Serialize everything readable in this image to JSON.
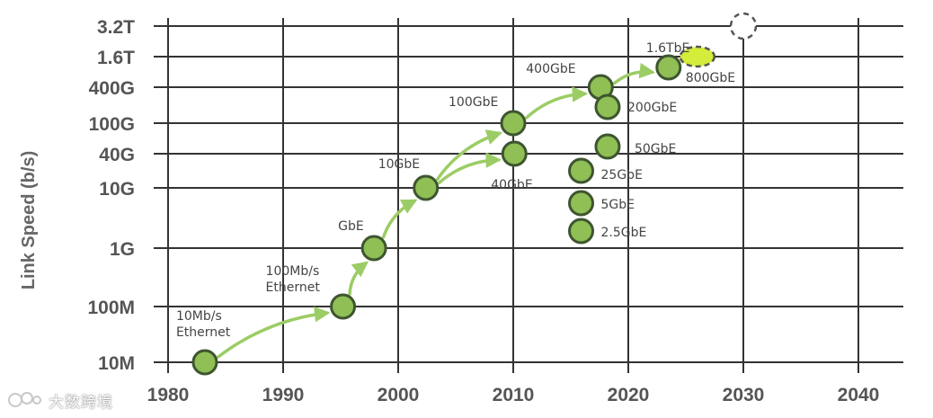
{
  "chart_data": {
    "type": "scatter",
    "title": "",
    "xlabel": "",
    "ylabel": "Link Speed (b/s)",
    "xlim": [
      1980,
      2040
    ],
    "x_ticks": [
      1980,
      1990,
      2000,
      2010,
      2020,
      2030,
      2040
    ],
    "y_ticks": [
      "10M",
      "100M",
      "1G",
      "10G",
      "40G",
      "100G",
      "400G",
      "1.6T",
      "3.2T"
    ],
    "grid": true,
    "colors": {
      "point": "#8fbf55",
      "point_border": "#3e5530",
      "arrow": "#9ccc65",
      "future_fill": "#d4ec3a",
      "grid": "#333333"
    },
    "points": [
      {
        "label": "10Mb/s\nEthernet",
        "year": 1983.2,
        "speed": "10M"
      },
      {
        "label": "100Mb/s\nEthernet",
        "year": 1995.2,
        "speed": "100M"
      },
      {
        "label": "GbE",
        "year": 1997.9,
        "speed": "1G"
      },
      {
        "label": "10GbE",
        "year": 2002.4,
        "speed": "10G"
      },
      {
        "label": "40GbE",
        "year": 2010.1,
        "speed": "40G"
      },
      {
        "label": "100GbE",
        "year": 2010.0,
        "speed": "100G"
      },
      {
        "label": "400GbE",
        "year": 2017.6,
        "speed": "400G"
      },
      {
        "label": "200GbE",
        "year": 2018.2,
        "speed": "200G"
      },
      {
        "label": "50GbE",
        "year": 2018.2,
        "speed": "50G"
      },
      {
        "label": "25GbE",
        "year": 2015.9,
        "speed": "25G"
      },
      {
        "label": "5GbE",
        "year": 2015.9,
        "speed": "5G"
      },
      {
        "label": "2.5GbE",
        "year": 2015.9,
        "speed": "2.5G"
      },
      {
        "label": "800GbE",
        "year": 2023.5,
        "speed": "800G"
      },
      {
        "label": "1.6TbE",
        "year": 2026.0,
        "speed": "1.6T"
      },
      {
        "label": "",
        "year": 2030.0,
        "speed": "3.2T"
      }
    ],
    "arrows": [
      {
        "from": "10Mb/s\nEthernet",
        "to": "100Mb/s\nEthernet"
      },
      {
        "from": "100Mb/s\nEthernet",
        "to": "GbE"
      },
      {
        "from": "GbE",
        "to": "10GbE"
      },
      {
        "from": "10GbE",
        "to": "100GbE"
      },
      {
        "from": "10GbE",
        "to": "40GbE"
      },
      {
        "from": "100GbE",
        "to": "400GbE"
      },
      {
        "from": "400GbE",
        "to": "800GbE"
      }
    ]
  },
  "watermark": {
    "text": "大数跨境"
  }
}
